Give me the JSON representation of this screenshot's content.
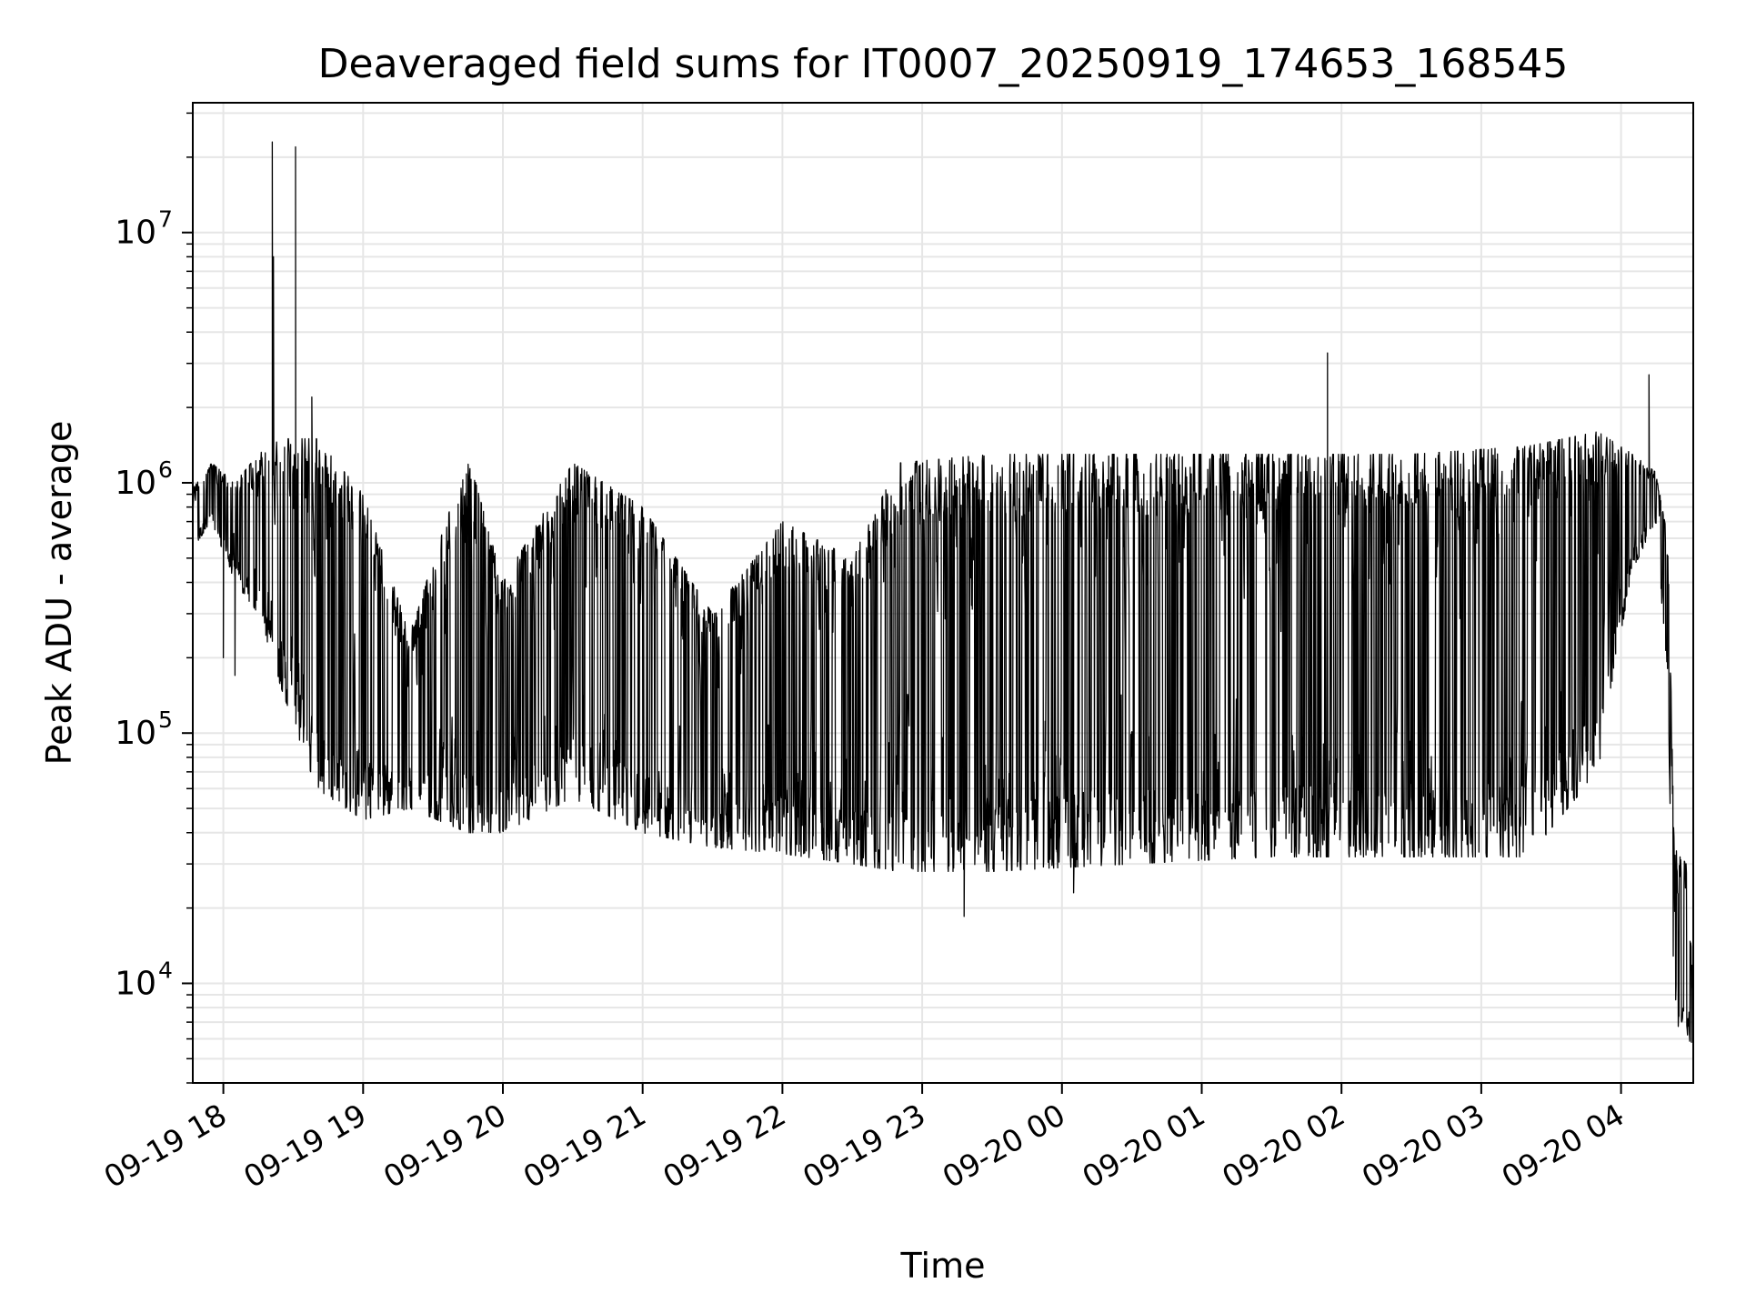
{
  "chart_data": {
    "type": "line",
    "title": "Deaveraged field sums for IT0007_20250919_174653_168545",
    "xlabel": "Time",
    "ylabel": "Peak ADU - average",
    "yscale": "log",
    "ylim": [
      4000,
      33000000
    ],
    "xlim": [
      "2025-09-19T17:46:53",
      "2025-09-20T04:31:00"
    ],
    "grid": true,
    "line_color": "#000000",
    "x_ticks": [
      {
        "label": "09-19 18",
        "t": "2025-09-19T18:00:00"
      },
      {
        "label": "09-19 19",
        "t": "2025-09-19T19:00:00"
      },
      {
        "label": "09-19 20",
        "t": "2025-09-19T20:00:00"
      },
      {
        "label": "09-19 21",
        "t": "2025-09-19T21:00:00"
      },
      {
        "label": "09-19 22",
        "t": "2025-09-19T22:00:00"
      },
      {
        "label": "09-19 23",
        "t": "2025-09-19T23:00:00"
      },
      {
        "label": "09-20 00",
        "t": "2025-09-20T00:00:00"
      },
      {
        "label": "09-20 01",
        "t": "2025-09-20T01:00:00"
      },
      {
        "label": "09-20 02",
        "t": "2025-09-20T02:00:00"
      },
      {
        "label": "09-20 03",
        "t": "2025-09-20T03:00:00"
      },
      {
        "label": "09-20 04",
        "t": "2025-09-20T04:00:00"
      }
    ],
    "y_ticks": [
      {
        "base": "10",
        "exp": "4",
        "value": 10000
      },
      {
        "base": "10",
        "exp": "5",
        "value": 100000
      },
      {
        "base": "10",
        "exp": "6",
        "value": 1000000
      },
      {
        "base": "10",
        "exp": "7",
        "value": 10000000
      }
    ],
    "envelope": [
      {
        "t": "2025-09-19T17:47:00",
        "low": 550000,
        "high": 950000
      },
      {
        "t": "2025-09-19T17:55:00",
        "low": 700000,
        "high": 1200000
      },
      {
        "t": "2025-09-19T18:05:00",
        "low": 400000,
        "high": 1000000
      },
      {
        "t": "2025-09-19T18:15:00",
        "low": 300000,
        "high": 1300000
      },
      {
        "t": "2025-09-19T18:25:00",
        "low": 150000,
        "high": 1500000
      },
      {
        "t": "2025-09-19T18:40:00",
        "low": 60000,
        "high": 1500000
      },
      {
        "t": "2025-09-19T19:00:00",
        "low": 45000,
        "high": 900000
      },
      {
        "t": "2025-09-19T19:20:00",
        "low": 50000,
        "high": 250000
      },
      {
        "t": "2025-09-19T19:45:00",
        "low": 40000,
        "high": 1300000
      },
      {
        "t": "2025-09-19T20:00:00",
        "low": 40000,
        "high": 400000
      },
      {
        "t": "2025-09-19T20:30:00",
        "low": 55000,
        "high": 1200000
      },
      {
        "t": "2025-09-19T21:00:00",
        "low": 40000,
        "high": 800000
      },
      {
        "t": "2025-09-19T21:30:00",
        "low": 35000,
        "high": 300000
      },
      {
        "t": "2025-09-19T22:00:00",
        "low": 33000,
        "high": 700000
      },
      {
        "t": "2025-09-19T22:30:00",
        "low": 30000,
        "high": 500000
      },
      {
        "t": "2025-09-19T22:50:00",
        "low": 28000,
        "high": 1200000
      },
      {
        "t": "2025-09-19T23:30:00",
        "low": 28000,
        "high": 1300000
      },
      {
        "t": "2025-09-20T00:30:00",
        "low": 30000,
        "high": 1300000
      },
      {
        "t": "2025-09-20T01:30:00",
        "low": 32000,
        "high": 1300000
      },
      {
        "t": "2025-09-20T02:30:00",
        "low": 32000,
        "high": 1300000
      },
      {
        "t": "2025-09-20T03:20:00",
        "low": 32000,
        "high": 1400000
      },
      {
        "t": "2025-09-20T03:50:00",
        "low": 70000,
        "high": 1600000
      },
      {
        "t": "2025-09-20T04:05:00",
        "low": 450000,
        "high": 1300000
      },
      {
        "t": "2025-09-20T04:15:00",
        "low": 700000,
        "high": 1100000
      },
      {
        "t": "2025-09-20T04:20:00",
        "low": 150000,
        "high": 600000
      },
      {
        "t": "2025-09-20T04:23:00",
        "low": 7000,
        "high": 35000
      },
      {
        "t": "2025-09-20T04:28:00",
        "low": 6000,
        "high": 30000
      },
      {
        "t": "2025-09-20T04:31:00",
        "low": 5500,
        "high": 10000
      }
    ],
    "spikes": [
      {
        "t": "2025-09-19T18:21:00",
        "value": 23000000
      },
      {
        "t": "2025-09-19T18:21:30",
        "value": 8000000
      },
      {
        "t": "2025-09-19T18:31:00",
        "value": 22000000
      },
      {
        "t": "2025-09-19T18:38:00",
        "value": 2200000
      },
      {
        "t": "2025-09-20T01:54:00",
        "value": 3300000
      },
      {
        "t": "2025-09-20T04:12:00",
        "value": 2700000
      }
    ],
    "dips": [
      {
        "t": "2025-09-19T18:00:00",
        "value": 200000
      },
      {
        "t": "2025-09-19T18:05:00",
        "value": 170000
      },
      {
        "t": "2025-09-19T23:18:00",
        "value": 18500.0
      },
      {
        "t": "2025-09-20T00:05:00",
        "value": 23000
      }
    ]
  }
}
